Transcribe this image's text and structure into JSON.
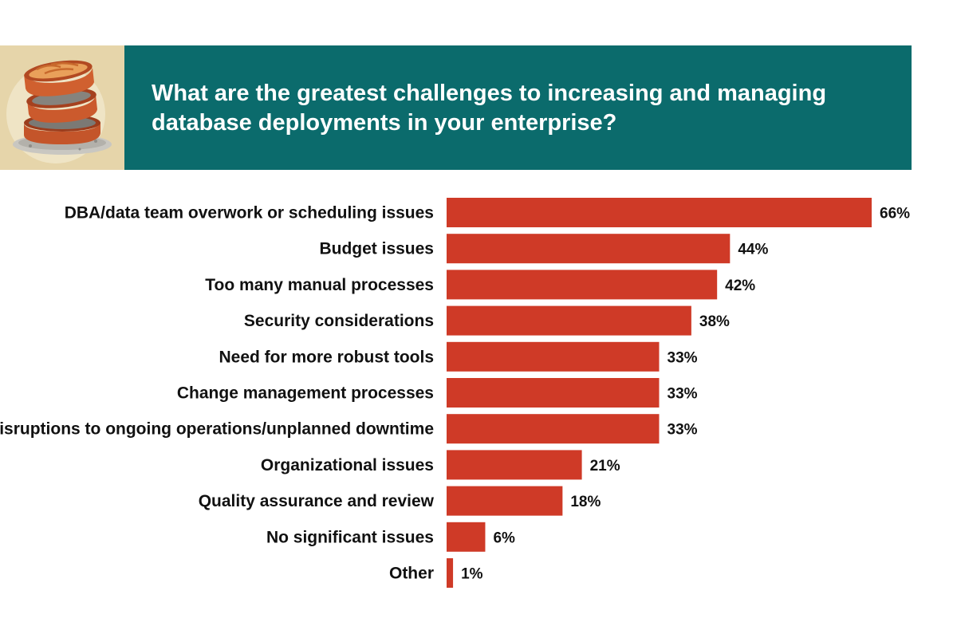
{
  "header": {
    "title": "What are the greatest challenges to increasing and managing database deployments in your enterprise?",
    "panel_color": "#0b6b6c",
    "icon_panel_color": "#e6d5aa",
    "icon": "stacked-database-cylinders-icon"
  },
  "chart_data": {
    "type": "bar",
    "orientation": "horizontal",
    "title": "What are the greatest challenges to increasing and managing database deployments in your enterprise?",
    "xlabel": "",
    "ylabel": "",
    "xlim": [
      0,
      66
    ],
    "bar_color": "#cf3a27",
    "value_suffix": "%",
    "categories": [
      "DBA/data team overwork or scheduling issues",
      "Budget issues",
      "Too many manual processes",
      "Security considerations",
      "Need for more robust tools",
      "Change management processes",
      "Disruptions to ongoing operations/unplanned downtime",
      "Organizational issues",
      "Quality assurance and review",
      "No significant issues",
      "Other"
    ],
    "values": [
      66,
      44,
      42,
      38,
      33,
      33,
      33,
      21,
      18,
      6,
      1
    ],
    "value_labels": [
      "66%",
      "44%",
      "42%",
      "38%",
      "33%",
      "33%",
      "33%",
      "21%",
      "18%",
      "6%",
      "1%"
    ]
  }
}
